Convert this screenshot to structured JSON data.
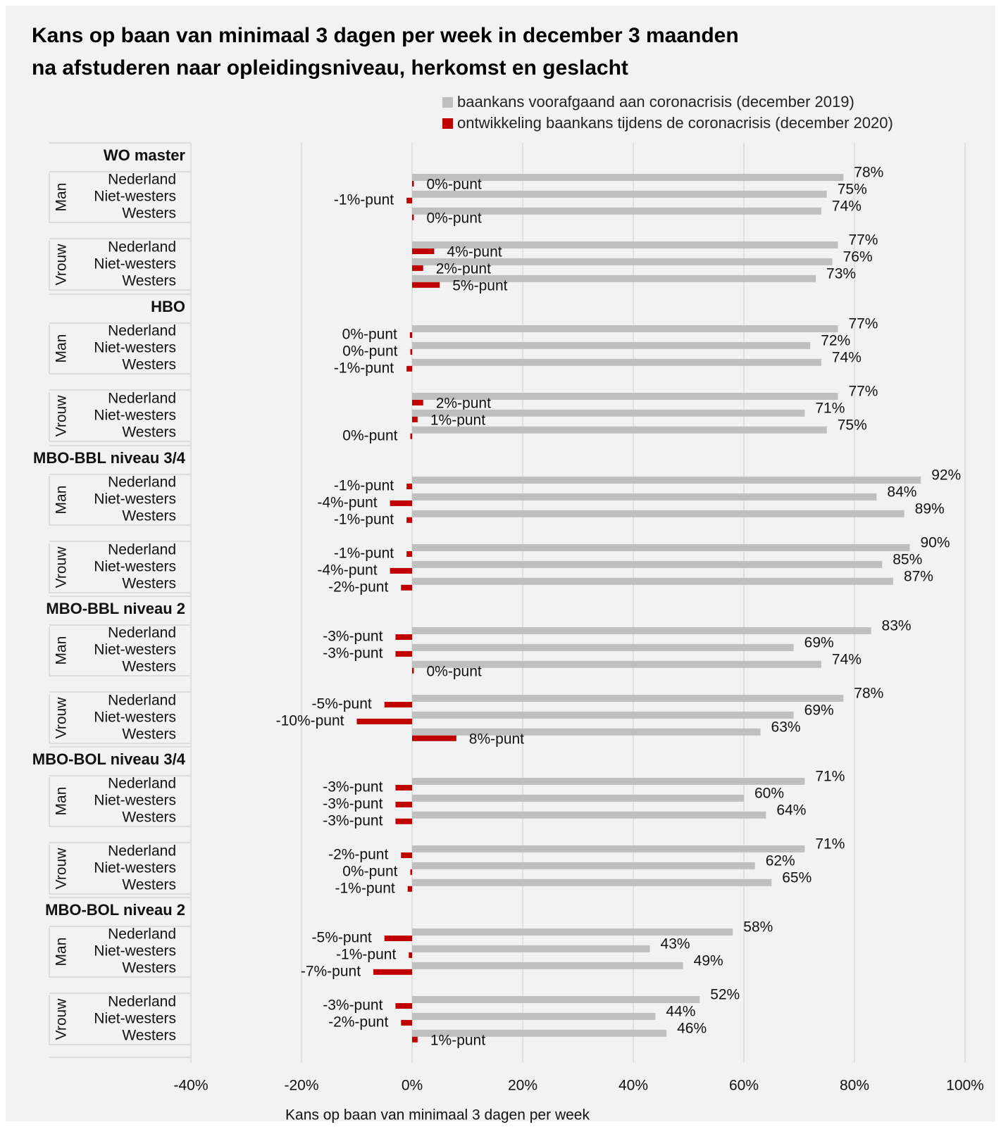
{
  "chart_data": {
    "type": "bar",
    "orientation": "horizontal",
    "title": "Kans op baan van minimaal 3 dagen per week in december 3 maanden na afstuderen naar opleidingsniveau, herkomst en geslacht",
    "xlabel": "Kans op baan van minimaal 3 dagen per week",
    "xlim": [
      -40,
      100
    ],
    "xticks": [
      "-40%",
      "-20%",
      "0%",
      "20%",
      "40%",
      "60%",
      "80%",
      "100%"
    ],
    "grid": true,
    "legend_position": "top-right",
    "colors": {
      "baseline": "#bfbfbf",
      "change": "#c00000"
    },
    "series": [
      {
        "name": "baankans voorafgaand aan coronacrisis (december 2019)",
        "key": "baseline"
      },
      {
        "name": "ontwikkeling baankans tijdens de coronacrisis (december 2020)",
        "key": "change"
      }
    ],
    "groups": [
      {
        "label": "WO master",
        "subgroups": [
          {
            "gender": "Man",
            "rows": [
              {
                "origin": "Nederland",
                "baseline": 78,
                "change": 0.3,
                "baseline_label": "78%",
                "change_label": "0%-punt"
              },
              {
                "origin": "Niet-westers",
                "baseline": 75,
                "change": -1,
                "baseline_label": "75%",
                "change_label": "-1%-punt"
              },
              {
                "origin": "Westers",
                "baseline": 74,
                "change": 0.3,
                "baseline_label": "74%",
                "change_label": "0%-punt"
              }
            ]
          },
          {
            "gender": "Vrouw",
            "rows": [
              {
                "origin": "Nederland",
                "baseline": 77,
                "change": 4,
                "baseline_label": "77%",
                "change_label": "4%-punt"
              },
              {
                "origin": "Niet-westers",
                "baseline": 76,
                "change": 2,
                "baseline_label": "76%",
                "change_label": "2%-punt"
              },
              {
                "origin": "Westers",
                "baseline": 73,
                "change": 5,
                "baseline_label": "73%",
                "change_label": "5%-punt"
              }
            ]
          }
        ]
      },
      {
        "label": "HBO",
        "subgroups": [
          {
            "gender": "Man",
            "rows": [
              {
                "origin": "Nederland",
                "baseline": 77,
                "change": -0.4,
                "baseline_label": "77%",
                "change_label": "0%-punt"
              },
              {
                "origin": "Niet-westers",
                "baseline": 72,
                "change": -0.2,
                "baseline_label": "72%",
                "change_label": "0%-punt"
              },
              {
                "origin": "Westers",
                "baseline": 74,
                "change": -1,
                "baseline_label": "74%",
                "change_label": "-1%-punt"
              }
            ]
          },
          {
            "gender": "Vrouw",
            "rows": [
              {
                "origin": "Nederland",
                "baseline": 77,
                "change": 2,
                "baseline_label": "77%",
                "change_label": "2%-punt"
              },
              {
                "origin": "Niet-westers",
                "baseline": 71,
                "change": 1,
                "baseline_label": "71%",
                "change_label": "1%-punt"
              },
              {
                "origin": "Westers",
                "baseline": 75,
                "change": -0.2,
                "baseline_label": "75%",
                "change_label": "0%-punt"
              }
            ]
          }
        ]
      },
      {
        "label": "MBO-BBL niveau 3/4",
        "subgroups": [
          {
            "gender": "Man",
            "rows": [
              {
                "origin": "Nederland",
                "baseline": 92,
                "change": -1,
                "baseline_label": "92%",
                "change_label": "-1%-punt"
              },
              {
                "origin": "Niet-westers",
                "baseline": 84,
                "change": -4,
                "baseline_label": "84%",
                "change_label": "-4%-punt"
              },
              {
                "origin": "Westers",
                "baseline": 89,
                "change": -1,
                "baseline_label": "89%",
                "change_label": "-1%-punt"
              }
            ]
          },
          {
            "gender": "Vrouw",
            "rows": [
              {
                "origin": "Nederland",
                "baseline": 90,
                "change": -1,
                "baseline_label": "90%",
                "change_label": "-1%-punt"
              },
              {
                "origin": "Niet-westers",
                "baseline": 85,
                "change": -4,
                "baseline_label": "85%",
                "change_label": "-4%-punt"
              },
              {
                "origin": "Westers",
                "baseline": 87,
                "change": -2,
                "baseline_label": "87%",
                "change_label": "-2%-punt"
              }
            ]
          }
        ]
      },
      {
        "label": "MBO-BBL niveau 2",
        "subgroups": [
          {
            "gender": "Man",
            "rows": [
              {
                "origin": "Nederland",
                "baseline": 83,
                "change": -3,
                "baseline_label": "83%",
                "change_label": "-3%-punt"
              },
              {
                "origin": "Niet-westers",
                "baseline": 69,
                "change": -3,
                "baseline_label": "69%",
                "change_label": "-3%-punt"
              },
              {
                "origin": "Westers",
                "baseline": 74,
                "change": 0.3,
                "baseline_label": "74%",
                "change_label": "0%-punt"
              }
            ]
          },
          {
            "gender": "Vrouw",
            "rows": [
              {
                "origin": "Nederland",
                "baseline": 78,
                "change": -5,
                "baseline_label": "78%",
                "change_label": "-5%-punt"
              },
              {
                "origin": "Niet-westers",
                "baseline": 69,
                "change": -10,
                "baseline_label": "69%",
                "change_label": "-10%-punt"
              },
              {
                "origin": "Westers",
                "baseline": 63,
                "change": 8,
                "baseline_label": "63%",
                "change_label": "8%-punt"
              }
            ]
          }
        ]
      },
      {
        "label": "MBO-BOL niveau 3/4",
        "subgroups": [
          {
            "gender": "Man",
            "rows": [
              {
                "origin": "Nederland",
                "baseline": 71,
                "change": -3,
                "baseline_label": "71%",
                "change_label": "-3%-punt"
              },
              {
                "origin": "Niet-westers",
                "baseline": 60,
                "change": -3,
                "baseline_label": "60%",
                "change_label": "-3%-punt"
              },
              {
                "origin": "Westers",
                "baseline": 64,
                "change": -3,
                "baseline_label": "64%",
                "change_label": "-3%-punt"
              }
            ]
          },
          {
            "gender": "Vrouw",
            "rows": [
              {
                "origin": "Nederland",
                "baseline": 71,
                "change": -2,
                "baseline_label": "71%",
                "change_label": "-2%-punt"
              },
              {
                "origin": "Niet-westers",
                "baseline": 62,
                "change": -0.2,
                "baseline_label": "62%",
                "change_label": "0%-punt"
              },
              {
                "origin": "Westers",
                "baseline": 65,
                "change": -0.8,
                "baseline_label": "65%",
                "change_label": "-1%-punt"
              }
            ]
          }
        ]
      },
      {
        "label": "MBO-BOL niveau 2",
        "subgroups": [
          {
            "gender": "Man",
            "rows": [
              {
                "origin": "Nederland",
                "baseline": 58,
                "change": -5,
                "baseline_label": "58%",
                "change_label": "-5%-punt"
              },
              {
                "origin": "Niet-westers",
                "baseline": 43,
                "change": -0.6,
                "baseline_label": "43%",
                "change_label": "-1%-punt"
              },
              {
                "origin": "Westers",
                "baseline": 49,
                "change": -7,
                "baseline_label": "49%",
                "change_label": "-7%-punt"
              }
            ]
          },
          {
            "gender": "Vrouw",
            "rows": [
              {
                "origin": "Nederland",
                "baseline": 52,
                "change": -3,
                "baseline_label": "52%",
                "change_label": "-3%-punt"
              },
              {
                "origin": "Niet-westers",
                "baseline": 44,
                "change": -2,
                "baseline_label": "44%",
                "change_label": "-2%-punt"
              },
              {
                "origin": "Westers",
                "baseline": 46,
                "change": 1,
                "baseline_label": "46%",
                "change_label": "1%-punt"
              }
            ]
          }
        ]
      }
    ]
  }
}
